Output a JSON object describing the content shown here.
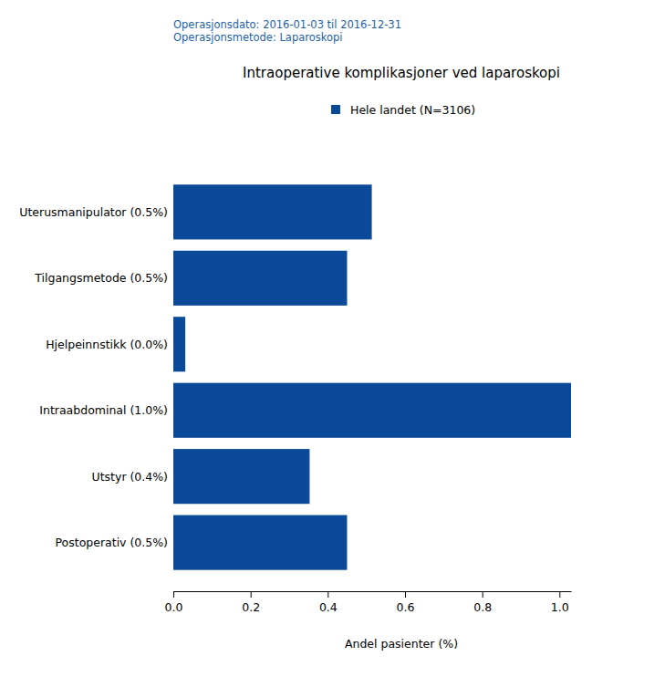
{
  "chart_data": {
    "type": "bar",
    "orientation": "horizontal",
    "annotations": [
      "Operasjonsdato: 2016-01-03 til 2016-12-31",
      "Operasjonsmetode: Laparoskopi"
    ],
    "title": "Intraoperative komplikasjoner ved laparoskopi",
    "xlabel": "Andel pasienter (%)",
    "categories": [
      "Uterusmanipulator (0.5%)",
      "Tilgangsmetode (0.5%)",
      "Hjelpeinnstikk (0.0%)",
      "Intraabdominal (1.0%)",
      "Utstyr (0.4%)",
      "Postoperativ (0.5%)"
    ],
    "series": [
      {
        "name": "Hele landet (N=3106)",
        "color": "#0b4a99",
        "values": [
          0.514,
          0.45,
          0.031,
          1.03,
          0.353,
          0.45
        ]
      }
    ],
    "legend": "top",
    "xlim": [
      0,
      1.03
    ],
    "xticks": [
      {
        "value": 0,
        "label": "0.0"
      },
      0.2,
      0.4,
      0.6,
      0.8,
      {
        "value": 1,
        "label": "1.0"
      }
    ],
    "grid": false
  }
}
